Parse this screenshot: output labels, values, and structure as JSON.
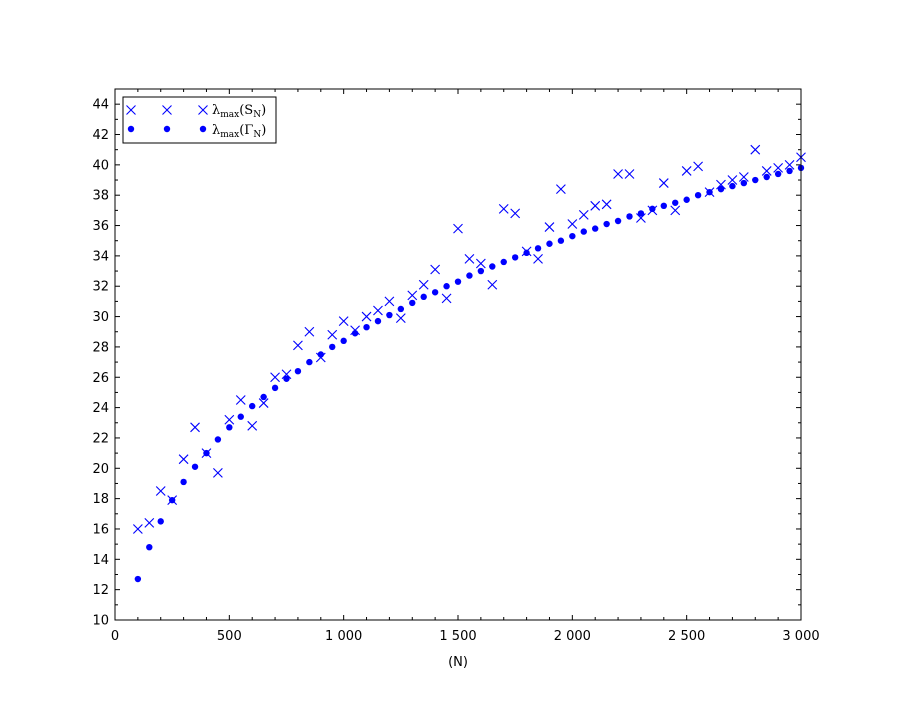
{
  "chart_data": {
    "type": "scatter",
    "title": "",
    "xlabel": "(N)",
    "ylabel": "",
    "xlim": [
      0,
      3000
    ],
    "ylim": [
      10,
      45
    ],
    "x_ticks": [
      0,
      500,
      1000,
      1500,
      2000,
      2500,
      3000
    ],
    "x_tick_labels": [
      "0",
      "500",
      "1 000",
      "1 500",
      "2 000",
      "2 500",
      "3 000"
    ],
    "y_ticks": [
      10,
      12,
      14,
      16,
      18,
      20,
      22,
      24,
      26,
      28,
      30,
      32,
      34,
      36,
      38,
      40,
      42,
      44
    ],
    "y_tick_labels": [
      "10",
      "12",
      "14",
      "16",
      "18",
      "20",
      "22",
      "24",
      "26",
      "28",
      "30",
      "32",
      "34",
      "36",
      "38",
      "40",
      "42",
      "44"
    ],
    "grid": false,
    "legend_position": "top-left",
    "color": "#0000ff",
    "series": [
      {
        "label_main": "λ",
        "label_sub": "max",
        "label_arg": "(S",
        "label_arg_sub": "N",
        "label_close": ")",
        "marker": "x",
        "x": [
          100,
          150,
          200,
          250,
          300,
          350,
          400,
          450,
          500,
          550,
          600,
          650,
          700,
          750,
          800,
          850,
          900,
          950,
          1000,
          1050,
          1100,
          1150,
          1200,
          1250,
          1300,
          1350,
          1400,
          1450,
          1500,
          1550,
          1600,
          1650,
          1700,
          1750,
          1800,
          1850,
          1900,
          1950,
          2000,
          2050,
          2100,
          2150,
          2200,
          2250,
          2300,
          2350,
          2400,
          2450,
          2500,
          2550,
          2600,
          2650,
          2700,
          2750,
          2800,
          2850,
          2900,
          2950,
          3000
        ],
        "y": [
          16.0,
          16.4,
          18.5,
          17.9,
          20.6,
          22.7,
          21.0,
          19.7,
          23.2,
          24.5,
          22.8,
          24.3,
          26.0,
          26.2,
          28.1,
          29.0,
          27.3,
          28.8,
          29.7,
          29.1,
          30.0,
          30.4,
          31.0,
          29.9,
          31.4,
          32.1,
          33.1,
          31.2,
          35.8,
          33.8,
          33.5,
          32.1,
          37.1,
          36.8,
          34.3,
          33.8,
          35.9,
          38.4,
          36.1,
          36.7,
          37.3,
          37.4,
          39.4,
          39.4,
          36.5,
          37.0,
          38.8,
          37.0,
          39.6,
          39.9,
          38.2,
          38.7,
          39.0,
          39.2,
          41.0,
          39.6,
          39.8,
          40.0,
          40.5
        ]
      },
      {
        "label_main": "λ",
        "label_sub": "max",
        "label_arg": "(Γ",
        "label_arg_sub": "N",
        "label_close": ")",
        "marker": "dot",
        "x": [
          100,
          150,
          200,
          250,
          300,
          350,
          400,
          450,
          500,
          550,
          600,
          650,
          700,
          750,
          800,
          850,
          900,
          950,
          1000,
          1050,
          1100,
          1150,
          1200,
          1250,
          1300,
          1350,
          1400,
          1450,
          1500,
          1550,
          1600,
          1650,
          1700,
          1750,
          1800,
          1850,
          1900,
          1950,
          2000,
          2050,
          2100,
          2150,
          2200,
          2250,
          2300,
          2350,
          2400,
          2450,
          2500,
          2550,
          2600,
          2650,
          2700,
          2750,
          2800,
          2850,
          2900,
          2950,
          3000
        ],
        "y": [
          12.7,
          14.8,
          16.5,
          17.9,
          19.1,
          20.1,
          21.0,
          21.9,
          22.7,
          23.4,
          24.1,
          24.7,
          25.3,
          25.9,
          26.4,
          27.0,
          27.5,
          28.0,
          28.4,
          28.9,
          29.3,
          29.7,
          30.1,
          30.5,
          30.9,
          31.3,
          31.6,
          32.0,
          32.3,
          32.7,
          33.0,
          33.3,
          33.6,
          33.9,
          34.2,
          34.5,
          34.8,
          35.0,
          35.3,
          35.6,
          35.8,
          36.1,
          36.3,
          36.6,
          36.8,
          37.1,
          37.3,
          37.5,
          37.7,
          38.0,
          38.2,
          38.4,
          38.6,
          38.8,
          39.0,
          39.2,
          39.4,
          39.6,
          39.8
        ]
      }
    ]
  }
}
